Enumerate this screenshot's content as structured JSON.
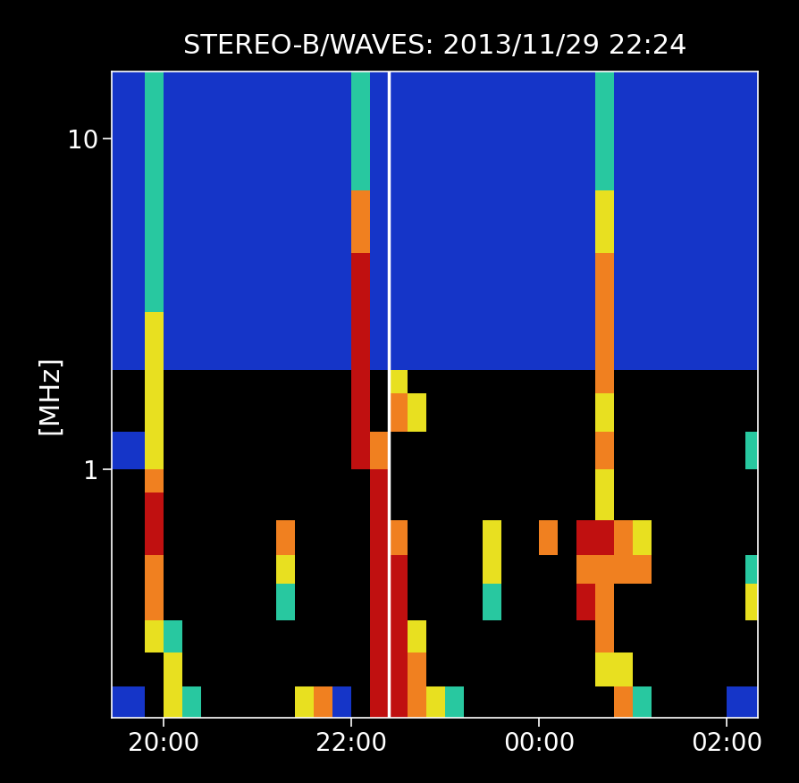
{
  "chart_data": {
    "type": "heatmap",
    "title": "STEREO-B/WAVES: 2013/11/29 22:24",
    "y_label": "[MHz]",
    "log": "y",
    "xlim": [
      19.45,
      26.33
    ],
    "ylim": [
      0.177,
      16
    ],
    "xticks": [
      {
        "value": 20,
        "label": "20:00"
      },
      {
        "value": 22,
        "label": "22:00"
      },
      {
        "value": 24,
        "label": "00:00"
      },
      {
        "value": 26,
        "label": "02:00"
      }
    ],
    "yticks": [
      1,
      10
    ],
    "cursor_time": 22.4,
    "colors": [
      "#000000",
      "#1535c8",
      "#28c8a0",
      "#e8e020",
      "#f08020",
      "#c01010"
    ],
    "x_edges": [
      19.4,
      19.6,
      19.8,
      20.0,
      20.2,
      20.4,
      20.6,
      20.8,
      21.0,
      21.2,
      21.4,
      21.6,
      21.8,
      22.0,
      22.2,
      22.4,
      22.6,
      22.8,
      23.0,
      23.2,
      23.4,
      23.6,
      23.8,
      24.0,
      24.2,
      24.4,
      24.6,
      24.8,
      25.0,
      25.2,
      25.4,
      25.6,
      25.8,
      26.0,
      26.2,
      26.4
    ],
    "y_edges": [
      0.177,
      0.22,
      0.28,
      0.35,
      0.45,
      0.55,
      0.7,
      0.85,
      1.0,
      1.3,
      1.7,
      2.0,
      3.0,
      4.5,
      7,
      11,
      16
    ],
    "cells": [
      [
        1,
        1,
        0,
        3,
        2,
        0,
        0,
        0,
        0,
        0,
        3,
        4,
        1,
        0,
        5,
        5,
        4,
        3,
        2,
        0,
        0,
        0,
        0,
        0,
        0,
        0,
        0,
        4,
        2,
        0,
        0,
        0,
        0,
        1,
        1
      ],
      [
        0,
        0,
        0,
        3,
        0,
        0,
        0,
        0,
        0,
        0,
        0,
        0,
        0,
        0,
        5,
        5,
        4,
        0,
        0,
        0,
        0,
        0,
        0,
        0,
        0,
        0,
        3,
        3,
        0,
        0,
        0,
        0,
        0,
        0,
        0
      ],
      [
        0,
        0,
        3,
        2,
        0,
        0,
        0,
        0,
        0,
        0,
        0,
        0,
        0,
        0,
        5,
        5,
        3,
        0,
        0,
        0,
        0,
        0,
        0,
        0,
        0,
        0,
        4,
        0,
        0,
        0,
        0,
        0,
        0,
        0,
        0
      ],
      [
        0,
        0,
        4,
        0,
        0,
        0,
        0,
        0,
        0,
        2,
        0,
        0,
        0,
        0,
        5,
        5,
        0,
        0,
        0,
        0,
        2,
        0,
        0,
        0,
        0,
        5,
        4,
        0,
        0,
        0,
        0,
        0,
        0,
        0,
        3
      ],
      [
        0,
        0,
        4,
        0,
        0,
        0,
        0,
        0,
        0,
        3,
        0,
        0,
        0,
        0,
        5,
        5,
        0,
        0,
        0,
        0,
        3,
        0,
        0,
        0,
        0,
        4,
        4,
        4,
        4,
        0,
        0,
        0,
        0,
        0,
        2
      ],
      [
        0,
        0,
        5,
        0,
        0,
        0,
        0,
        0,
        0,
        4,
        0,
        0,
        0,
        0,
        5,
        4,
        0,
        0,
        0,
        0,
        3,
        0,
        0,
        4,
        0,
        5,
        5,
        4,
        3,
        0,
        0,
        0,
        0,
        0,
        0
      ],
      [
        0,
        0,
        5,
        0,
        0,
        0,
        0,
        0,
        0,
        0,
        0,
        0,
        0,
        0,
        5,
        0,
        0,
        0,
        0,
        0,
        0,
        0,
        0,
        0,
        0,
        0,
        3,
        0,
        0,
        0,
        0,
        0,
        0,
        0,
        0
      ],
      [
        0,
        0,
        4,
        0,
        0,
        0,
        0,
        0,
        0,
        0,
        0,
        0,
        0,
        0,
        5,
        0,
        0,
        0,
        0,
        0,
        0,
        0,
        0,
        0,
        0,
        0,
        3,
        0,
        0,
        0,
        0,
        0,
        0,
        0,
        0
      ],
      [
        1,
        1,
        3,
        0,
        0,
        0,
        0,
        0,
        0,
        0,
        0,
        0,
        0,
        5,
        4,
        0,
        0,
        0,
        0,
        0,
        0,
        0,
        0,
        0,
        0,
        0,
        4,
        0,
        0,
        0,
        0,
        0,
        0,
        0,
        2
      ],
      [
        0,
        0,
        3,
        0,
        0,
        0,
        0,
        0,
        0,
        0,
        0,
        0,
        0,
        5,
        0,
        4,
        3,
        0,
        0,
        0,
        0,
        0,
        0,
        0,
        0,
        0,
        3,
        0,
        0,
        0,
        0,
        0,
        0,
        0,
        0
      ],
      [
        0,
        0,
        3,
        0,
        0,
        0,
        0,
        0,
        0,
        0,
        0,
        0,
        0,
        5,
        0,
        3,
        0,
        0,
        0,
        0,
        0,
        0,
        0,
        0,
        0,
        0,
        4,
        0,
        0,
        0,
        0,
        0,
        0,
        0,
        0
      ],
      [
        1,
        1,
        3,
        1,
        1,
        1,
        1,
        1,
        1,
        1,
        1,
        1,
        1,
        5,
        1,
        1,
        1,
        1,
        1,
        1,
        1,
        1,
        1,
        1,
        1,
        1,
        4,
        1,
        1,
        1,
        1,
        1,
        1,
        1,
        1
      ],
      [
        1,
        1,
        2,
        1,
        1,
        1,
        1,
        1,
        1,
        1,
        1,
        1,
        1,
        5,
        1,
        1,
        1,
        1,
        1,
        1,
        1,
        1,
        1,
        1,
        1,
        1,
        4,
        1,
        1,
        1,
        1,
        1,
        1,
        1,
        1
      ],
      [
        1,
        1,
        2,
        1,
        1,
        1,
        1,
        1,
        1,
        1,
        1,
        1,
        1,
        4,
        1,
        1,
        1,
        1,
        1,
        1,
        1,
        1,
        1,
        1,
        1,
        1,
        3,
        1,
        1,
        1,
        1,
        1,
        1,
        1,
        1
      ],
      [
        1,
        1,
        2,
        1,
        1,
        1,
        1,
        1,
        1,
        1,
        1,
        1,
        1,
        2,
        1,
        1,
        1,
        1,
        1,
        1,
        1,
        1,
        1,
        1,
        1,
        1,
        2,
        1,
        1,
        1,
        1,
        1,
        1,
        1,
        1
      ],
      [
        1,
        1,
        2,
        1,
        1,
        1,
        1,
        1,
        1,
        1,
        1,
        1,
        1,
        2,
        1,
        1,
        1,
        1,
        1,
        1,
        1,
        1,
        1,
        1,
        1,
        1,
        2,
        1,
        1,
        1,
        1,
        1,
        1,
        1,
        1
      ]
    ]
  }
}
